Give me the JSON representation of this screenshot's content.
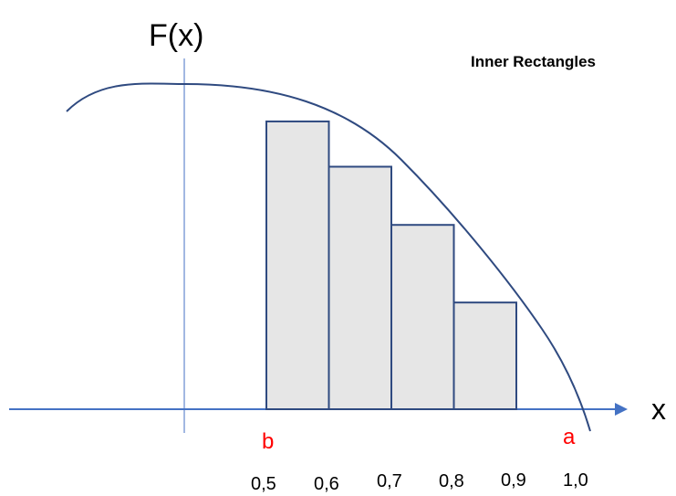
{
  "title": "Inner Rectangles",
  "y_axis_label": "F(x)",
  "x_axis_label": "x",
  "lower_bound_label": "b",
  "upper_bound_label": "a",
  "tick_labels": [
    "0,5",
    "0,6",
    "0,7",
    "0,8",
    "0,9",
    "1,0"
  ],
  "rectangles": [
    {
      "x_start": 0.5,
      "x_end": 0.6,
      "height": 0.89
    },
    {
      "x_start": 0.6,
      "x_end": 0.7,
      "height": 0.75
    },
    {
      "x_start": 0.7,
      "x_end": 0.8,
      "height": 0.57
    },
    {
      "x_start": 0.8,
      "x_end": 0.9,
      "height": 0.33
    }
  ],
  "colors": {
    "axis": "#4472c4",
    "curve": "#2f4a80",
    "rect_fill": "#e6e6e6",
    "rect_stroke": "#2f4a80",
    "bound_label": "#ff0000"
  }
}
